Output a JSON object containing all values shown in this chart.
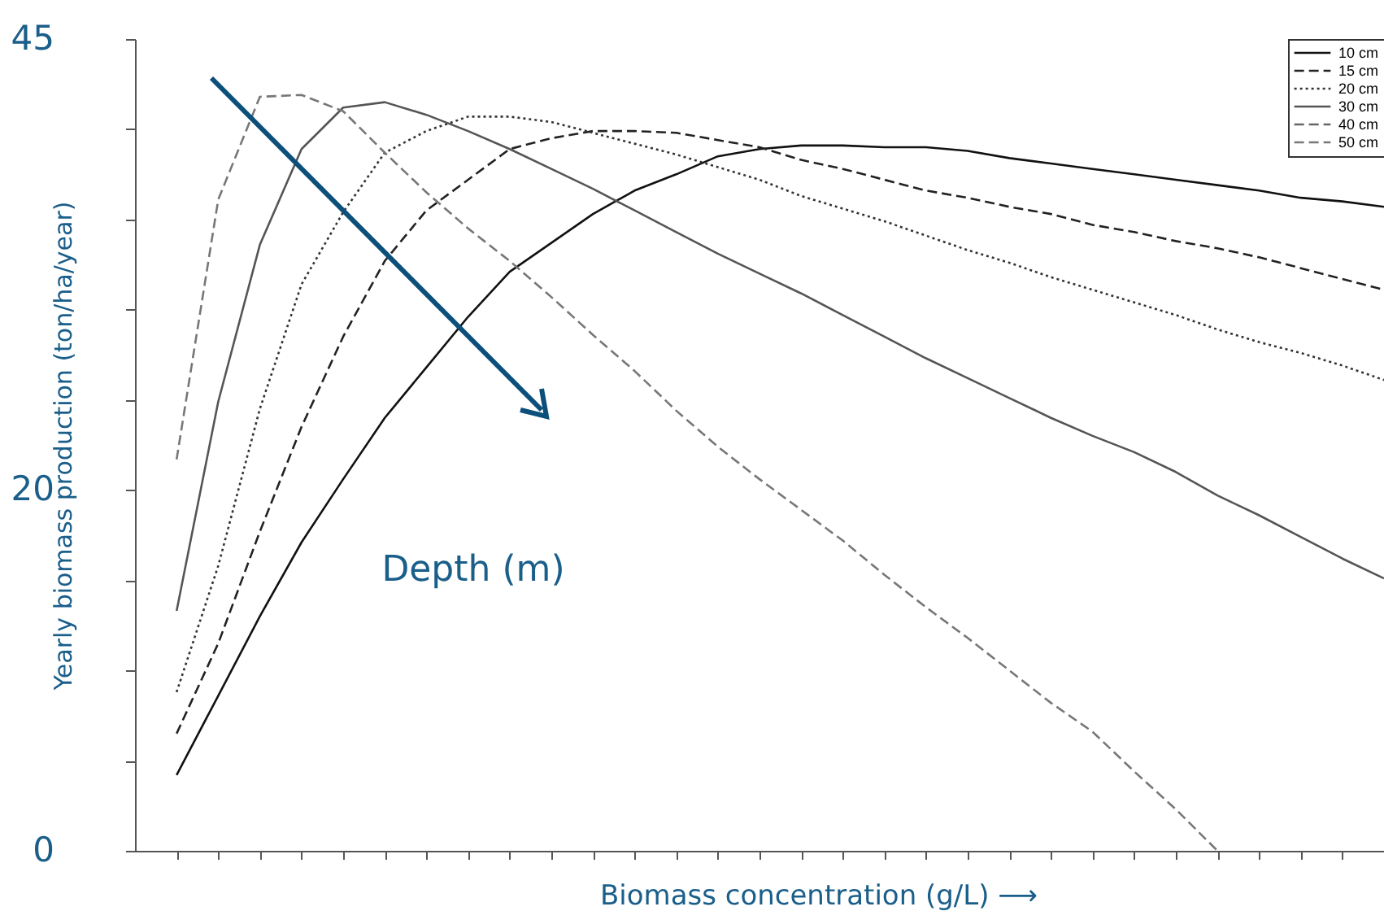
{
  "chart_data": {
    "type": "line",
    "xlabel": "Biomass concentration (g/L)  ⟶",
    "ylabel": "Yearly biomass production (ton/ha/year)",
    "categories": [
      null,
      null,
      null,
      null,
      null,
      null,
      null,
      null,
      null,
      null,
      null,
      null,
      null,
      null,
      null,
      null,
      null,
      null,
      null,
      null,
      null,
      null,
      null,
      null,
      null,
      null,
      null,
      null,
      null,
      null
    ],
    "series": [
      {
        "name": "10 cm",
        "color": "#111111",
        "line_style": "solid",
        "values": [
          4.2,
          8.6,
          13.0,
          17.1,
          20.6,
          24.0,
          26.8,
          29.6,
          32.1,
          33.7,
          35.3,
          36.6,
          37.5,
          38.5,
          38.9,
          39.1,
          39.1,
          39.0,
          39.0,
          38.8,
          38.4,
          38.1,
          37.8,
          37.5,
          37.2,
          36.9,
          36.6,
          36.2,
          36.0,
          35.7
        ]
      },
      {
        "name": "15 cm",
        "color": "#222222",
        "line_style": "dashed",
        "values": [
          6.5,
          11.5,
          17.7,
          23.5,
          28.5,
          32.7,
          35.5,
          37.2,
          38.9,
          39.5,
          39.9,
          39.9,
          39.8,
          39.4,
          39.0,
          38.3,
          37.8,
          37.2,
          36.6,
          36.2,
          35.7,
          35.3,
          34.7,
          34.3,
          33.8,
          33.4,
          32.9,
          32.3,
          31.7,
          31.1
        ]
      },
      {
        "name": "20 cm",
        "color": "#333333",
        "line_style": "dotted",
        "values": [
          8.8,
          15.8,
          24.5,
          31.4,
          35.4,
          38.7,
          39.9,
          40.7,
          40.7,
          40.4,
          39.8,
          39.2,
          38.6,
          37.9,
          37.2,
          36.3,
          35.6,
          34.9,
          34.1,
          33.3,
          32.6,
          31.8,
          31.1,
          30.4,
          29.7,
          28.9,
          28.2,
          27.6,
          26.9,
          26.1
        ]
      },
      {
        "name": "30 cm",
        "color": "#555555",
        "line_style": "solid",
        "values": [
          13.3,
          24.9,
          33.6,
          38.9,
          41.2,
          41.5,
          40.8,
          39.9,
          38.9,
          37.8,
          36.7,
          35.5,
          34.3,
          33.1,
          32.0,
          30.9,
          29.7,
          28.5,
          27.3,
          26.2,
          25.1,
          24.0,
          23.0,
          22.1,
          21.0,
          19.7,
          18.6,
          17.4,
          16.2,
          15.1
        ]
      },
      {
        "name": "40 cm",
        "color": "#666666",
        "line_style": "dashed",
        "values": [
          null,
          null,
          null,
          null,
          null,
          null,
          null,
          null,
          null,
          null,
          null,
          null,
          null,
          null,
          null,
          null,
          null,
          null,
          null,
          null,
          null,
          null,
          null,
          null,
          null,
          null,
          null,
          null,
          null,
          null
        ]
      },
      {
        "name": "50 cm",
        "color": "#777777",
        "line_style": "dashed",
        "values": [
          21.7,
          36.1,
          41.8,
          41.9,
          41.0,
          38.7,
          36.5,
          34.5,
          32.7,
          30.7,
          28.6,
          26.6,
          24.4,
          22.4,
          20.6,
          18.9,
          17.2,
          15.3,
          13.5,
          11.8,
          10.0,
          8.2,
          6.6,
          4.4,
          2.3,
          0,
          null,
          null,
          null,
          null
        ]
      }
    ],
    "ylim": [
      0,
      45
    ],
    "yticks": [
      0,
      {
        "value": 5,
        "label": null
      },
      {
        "value": 10,
        "label": null
      },
      {
        "value": 15,
        "label": null
      },
      20,
      {
        "value": 25,
        "label": null
      },
      {
        "value": 30,
        "label": null
      },
      {
        "value": 35,
        "label": null
      },
      {
        "value": 40,
        "label": null
      },
      45
    ],
    "tick_labels": "y",
    "grid": false,
    "legend": "top right",
    "annotations": [
      "Depth (m)"
    ]
  }
}
